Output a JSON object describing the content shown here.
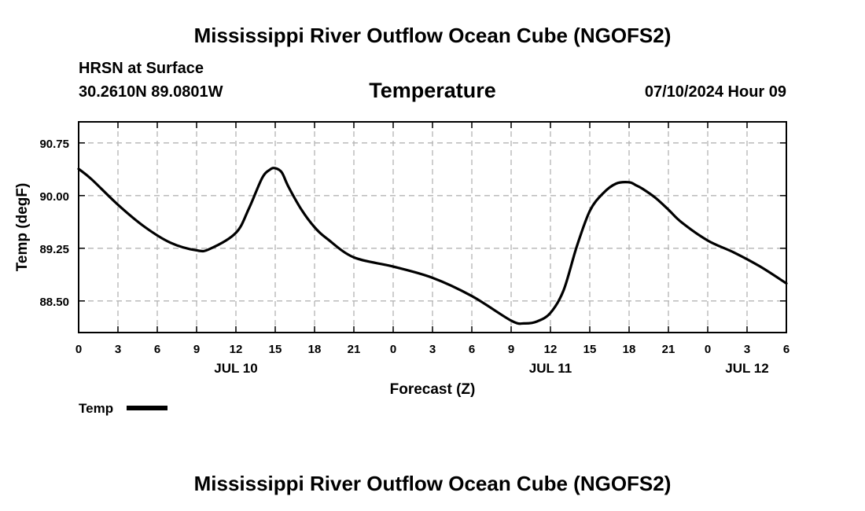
{
  "header": {
    "title": "Mississippi River Outflow Ocean Cube (NGOFS2)",
    "station": "HRSN at Surface",
    "coords": "30.2610N  89.0801W",
    "variable": "Temperature",
    "datetime": "07/10/2024 Hour 09"
  },
  "footer": {
    "title": "Mississippi River Outflow Ocean Cube (NGOFS2)"
  },
  "legend": {
    "label": "Temp"
  },
  "colors": {
    "line": "#000000",
    "grid": "#b4b4b4"
  },
  "chart_data": {
    "type": "line",
    "title": "Temperature",
    "xlabel": "Forecast (Z)",
    "ylabel": "Temp (degF)",
    "xlim": [
      0,
      54
    ],
    "ylim": [
      88.05,
      91.05
    ],
    "yticks": [
      88.5,
      89.25,
      90.0,
      90.75
    ],
    "ytick_labels": [
      "88.50",
      "89.25",
      "90.00",
      "90.75"
    ],
    "xticks": [
      0,
      3,
      6,
      9,
      12,
      15,
      18,
      21,
      24,
      27,
      30,
      33,
      36,
      39,
      42,
      45,
      48,
      51,
      54
    ],
    "xtick_labels": [
      "0",
      "3",
      "6",
      "9",
      "12",
      "15",
      "18",
      "21",
      "0",
      "3",
      "6",
      "9",
      "12",
      "15",
      "18",
      "21",
      "0",
      "3",
      "6"
    ],
    "day_labels": [
      {
        "x": 12,
        "label": "JUL 10"
      },
      {
        "x": 36,
        "label": "JUL 11"
      },
      {
        "x": 51,
        "label": "JUL 12"
      }
    ],
    "grid": true,
    "legend": "bottom-left",
    "series": [
      {
        "name": "Temp",
        "x": [
          0,
          1,
          3,
          5,
          7,
          9,
          10,
          12,
          13,
          14,
          14.6,
          15,
          15.5,
          16,
          17,
          18,
          19,
          21,
          24,
          27,
          30,
          33,
          34,
          35,
          36,
          37,
          38,
          39,
          40,
          41,
          42,
          42.5,
          43,
          44,
          45,
          46,
          48,
          50,
          52,
          54
        ],
        "values": [
          90.38,
          90.23,
          89.87,
          89.56,
          89.33,
          89.22,
          89.24,
          89.47,
          89.82,
          90.25,
          90.37,
          90.39,
          90.33,
          90.13,
          89.8,
          89.55,
          89.38,
          89.12,
          88.99,
          88.83,
          88.57,
          88.22,
          88.18,
          88.21,
          88.33,
          88.65,
          89.27,
          89.78,
          90.03,
          90.17,
          90.19,
          90.15,
          90.1,
          89.97,
          89.8,
          89.62,
          89.36,
          89.19,
          88.99,
          88.75
        ]
      }
    ]
  }
}
